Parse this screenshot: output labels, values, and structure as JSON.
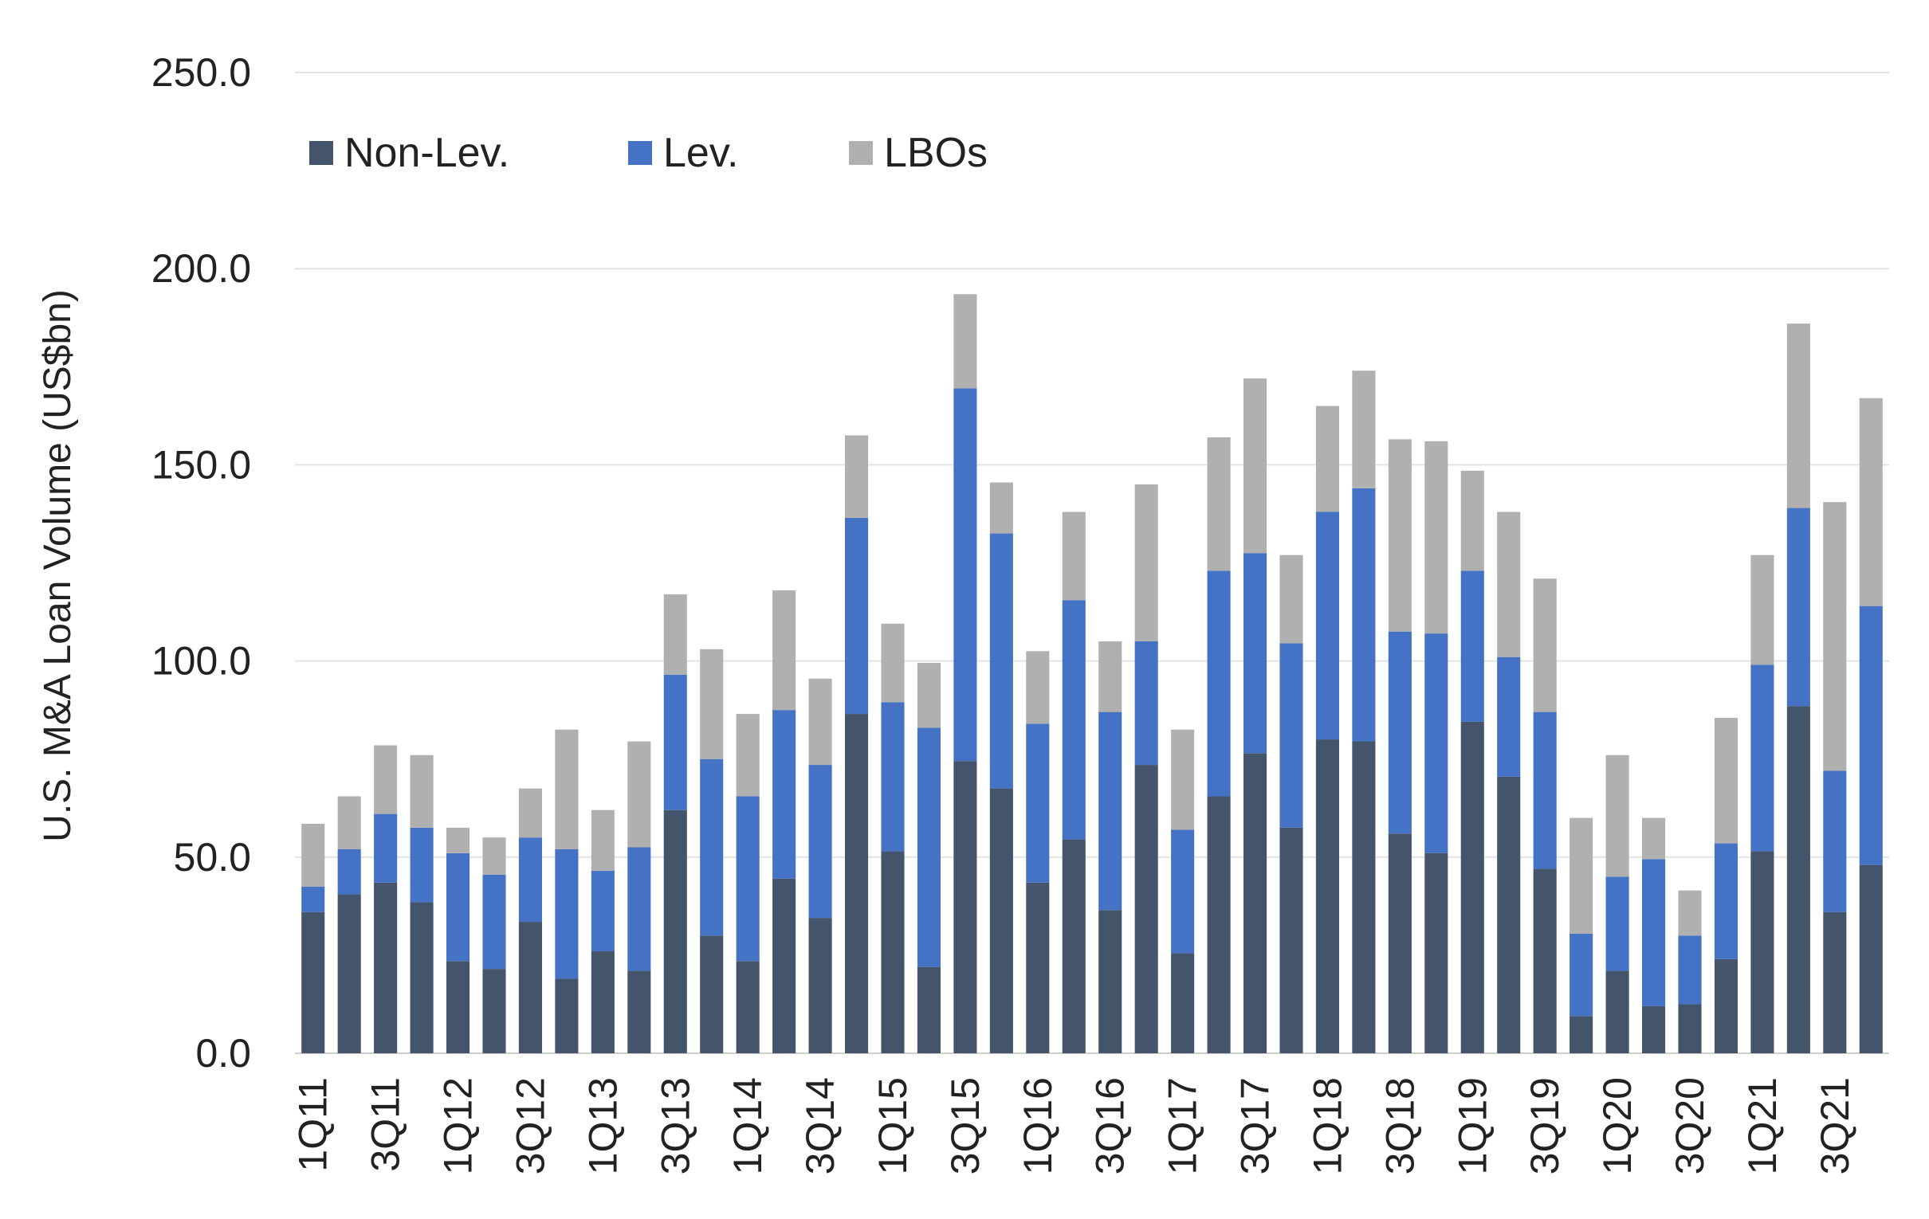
{
  "chart_data": {
    "type": "bar",
    "stacked": true,
    "title": "",
    "xlabel": "",
    "ylabel": "U.S. M&A Loan Volume (US$bn)",
    "ylim": [
      0,
      250
    ],
    "yticks": [
      "0.0",
      "50.0",
      "100.0",
      "150.0",
      "200.0",
      "250.0"
    ],
    "grid": true,
    "legend_position": "top-left",
    "categories": [
      "1Q11",
      "2Q11",
      "3Q11",
      "4Q11",
      "1Q12",
      "2Q12",
      "3Q12",
      "4Q12",
      "1Q13",
      "2Q13",
      "3Q13",
      "4Q13",
      "1Q14",
      "2Q14",
      "3Q14",
      "4Q14",
      "1Q15",
      "2Q15",
      "3Q15",
      "4Q15",
      "1Q16",
      "2Q16",
      "3Q16",
      "4Q16",
      "1Q17",
      "2Q17",
      "3Q17",
      "4Q17",
      "1Q18",
      "2Q18",
      "3Q18",
      "4Q18",
      "1Q19",
      "2Q19",
      "3Q19",
      "4Q19",
      "1Q20",
      "2Q20",
      "3Q20",
      "4Q20",
      "1Q21",
      "2Q21",
      "3Q21",
      "4Q21"
    ],
    "visible_tick_labels": [
      "1Q11",
      "",
      "3Q11",
      "",
      "1Q12",
      "",
      "3Q12",
      "",
      "1Q13",
      "",
      "3Q13",
      "",
      "1Q14",
      "",
      "3Q14",
      "",
      "1Q15",
      "",
      "3Q15",
      "",
      "1Q16",
      "",
      "3Q16",
      "",
      "1Q17",
      "",
      "3Q17",
      "",
      "1Q18",
      "",
      "3Q18",
      "",
      "1Q19",
      "",
      "3Q19",
      "",
      "1Q20",
      "",
      "3Q20",
      "",
      "1Q21",
      "",
      "3Q21",
      ""
    ],
    "series": [
      {
        "name": "Non-Lev.",
        "color": "#44546a",
        "values": [
          36,
          40.5,
          43.5,
          38.5,
          23.5,
          21.5,
          33.5,
          19,
          26,
          21,
          62,
          30,
          23.5,
          44.5,
          34.5,
          86.5,
          51.5,
          22,
          74.5,
          67.5,
          43.5,
          54.5,
          36.5,
          73.5,
          25.5,
          65.5,
          76.5,
          57.5,
          80,
          79.5,
          56,
          51,
          84.5,
          70.5,
          47,
          9.5,
          21,
          12,
          12.5,
          24,
          51.5,
          88.5,
          36,
          48
        ]
      },
      {
        "name": "Lev.",
        "color": "#4472c4",
        "values": [
          6.5,
          11.5,
          17.5,
          19,
          27.5,
          24,
          21.5,
          33,
          20.5,
          31.5,
          34.5,
          45,
          42,
          43,
          39,
          50,
          38,
          61,
          95,
          65,
          40.5,
          61,
          50.5,
          31.5,
          31.5,
          57.5,
          51,
          47,
          58,
          64.5,
          51.5,
          56,
          38.5,
          30.5,
          40,
          21,
          24,
          37.5,
          17.5,
          29.5,
          47.5,
          50.5,
          36,
          66
        ]
      },
      {
        "name": "LBOs",
        "color": "#b0b0b0",
        "values": [
          16,
          13.5,
          17.5,
          18.5,
          6.5,
          9.5,
          12.5,
          30.5,
          15.5,
          27,
          20.5,
          28,
          21,
          30.5,
          22,
          21,
          20,
          16.5,
          24,
          13,
          18.5,
          22.5,
          18,
          40,
          25.5,
          34,
          44.5,
          22.5,
          27,
          30,
          49,
          49,
          25.5,
          37,
          34,
          29.5,
          31,
          10.5,
          11.5,
          32,
          28,
          47,
          68.5,
          53
        ]
      }
    ]
  }
}
